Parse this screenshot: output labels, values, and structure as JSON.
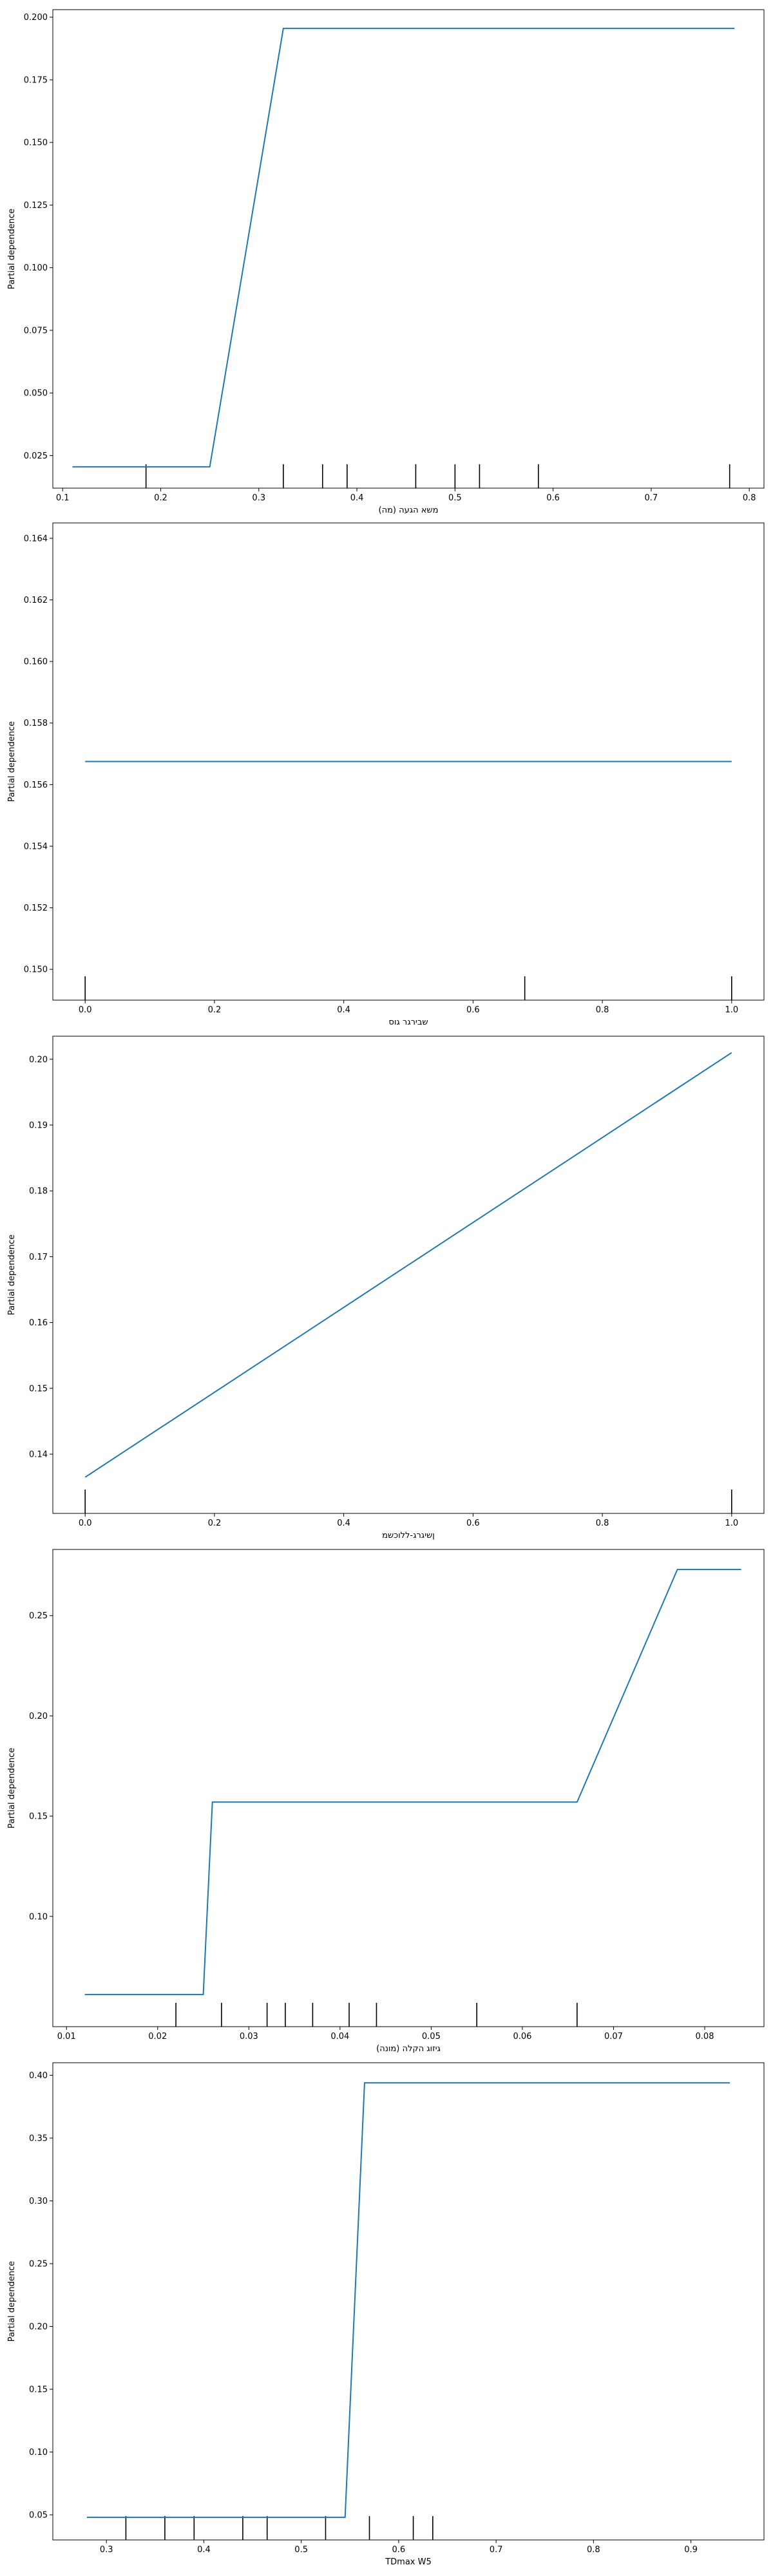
{
  "chart_data": [
    {
      "type": "line",
      "title": "",
      "xlabel": "משא הגעה (מה)",
      "ylabel": "Partial dependence",
      "xlim": [
        0.09,
        0.815
      ],
      "ylim": [
        0.012,
        0.203
      ],
      "xticks": [
        "0.1",
        "0.2",
        "0.3",
        "0.4",
        "0.5",
        "0.6",
        "0.7",
        "0.8"
      ],
      "yticks": [
        "0.025",
        "0.050",
        "0.075",
        "0.100",
        "0.125",
        "0.150",
        "0.175",
        "0.200"
      ],
      "x": [
        0.11,
        0.25,
        0.325,
        0.785
      ],
      "y": [
        0.0205,
        0.0205,
        0.1955,
        0.1955
      ],
      "rug": [
        0.185,
        0.325,
        0.365,
        0.39,
        0.46,
        0.5,
        0.525,
        0.585,
        0.78
      ],
      "grid": false,
      "color": "#1f77b4"
    },
    {
      "type": "line",
      "title": "",
      "xlabel": "שבירגר גוס",
      "ylabel": "Partial dependence",
      "xlim": [
        -0.05,
        1.05
      ],
      "ylim": [
        0.149,
        0.1645
      ],
      "xticks": [
        "0.0",
        "0.2",
        "0.4",
        "0.6",
        "0.8",
        "1.0"
      ],
      "yticks": [
        "0.150",
        "0.152",
        "0.154",
        "0.156",
        "0.158",
        "0.160",
        "0.162",
        "0.164"
      ],
      "x": [
        0.0,
        1.0
      ],
      "y": [
        0.15675,
        0.15675
      ],
      "rug": [
        0.0,
        0.68,
        1.0
      ],
      "grid": false,
      "color": "#1f77b4"
    },
    {
      "type": "line",
      "title": "",
      "xlabel": "ןשיגרג-ללוכשמ",
      "ylabel": "Partial dependence",
      "xlim": [
        -0.05,
        1.05
      ],
      "ylim": [
        0.131,
        0.2035
      ],
      "xticks": [
        "0.0",
        "0.2",
        "0.4",
        "0.6",
        "0.8",
        "1.0"
      ],
      "yticks": [
        "0.14",
        "0.15",
        "0.16",
        "0.17",
        "0.18",
        "0.19",
        "0.20"
      ],
      "x": [
        0.0,
        1.0
      ],
      "y": [
        0.1365,
        0.201
      ],
      "rug": [
        0.0,
        1.0
      ],
      "grid": false,
      "color": "#1f77b4"
    },
    {
      "type": "line",
      "title": "",
      "xlabel": "גיזוג הקלה (מונה)",
      "ylabel": "Partial dependence",
      "xlim": [
        0.0085,
        0.0865
      ],
      "ylim": [
        0.045,
        0.283
      ],
      "xticks": [
        "0.01",
        "0.02",
        "0.03",
        "0.04",
        "0.05",
        "0.06",
        "0.07",
        "0.08"
      ],
      "yticks": [
        "0.10",
        "0.15",
        "0.20",
        "0.25"
      ],
      "x": [
        0.012,
        0.025,
        0.026,
        0.066,
        0.077,
        0.084
      ],
      "y": [
        0.061,
        0.061,
        0.157,
        0.157,
        0.273,
        0.273
      ],
      "rug": [
        0.022,
        0.027,
        0.032,
        0.034,
        0.037,
        0.041,
        0.044,
        0.055,
        0.066
      ],
      "grid": false,
      "color": "#1f77b4"
    },
    {
      "type": "line",
      "title": "",
      "xlabel": "TDmax W5",
      "ylabel": "Partial dependence",
      "xlim": [
        0.245,
        0.975
      ],
      "ylim": [
        0.03,
        0.41
      ],
      "xticks": [
        "0.3",
        "0.4",
        "0.5",
        "0.6",
        "0.7",
        "0.8",
        "0.9"
      ],
      "yticks": [
        "0.05",
        "0.10",
        "0.15",
        "0.20",
        "0.25",
        "0.30",
        "0.35",
        "0.40"
      ],
      "x": [
        0.28,
        0.545,
        0.565,
        0.94
      ],
      "y": [
        0.048,
        0.048,
        0.394,
        0.394
      ],
      "rug": [
        0.32,
        0.36,
        0.39,
        0.44,
        0.465,
        0.525,
        0.57,
        0.615,
        0.635
      ],
      "grid": false,
      "color": "#1f77b4"
    }
  ]
}
